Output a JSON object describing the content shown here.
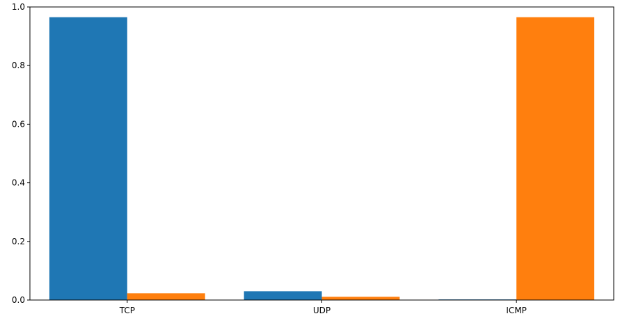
{
  "chart_data": {
    "type": "bar",
    "categories": [
      "TCP",
      "UDP",
      "ICMP"
    ],
    "series": [
      {
        "values": [
          0.965,
          0.03,
          0.002
        ],
        "color": "#1f77b4"
      },
      {
        "values": [
          0.023,
          0.011,
          0.965
        ],
        "color": "#ff7f0e"
      }
    ],
    "ylim": [
      0,
      1.0
    ],
    "yticks": [
      "0.0",
      "0.2",
      "0.4",
      "0.6",
      "0.8",
      "1.0"
    ],
    "title": "",
    "xlabel": "",
    "ylabel": "",
    "grid": false,
    "legend": false
  }
}
